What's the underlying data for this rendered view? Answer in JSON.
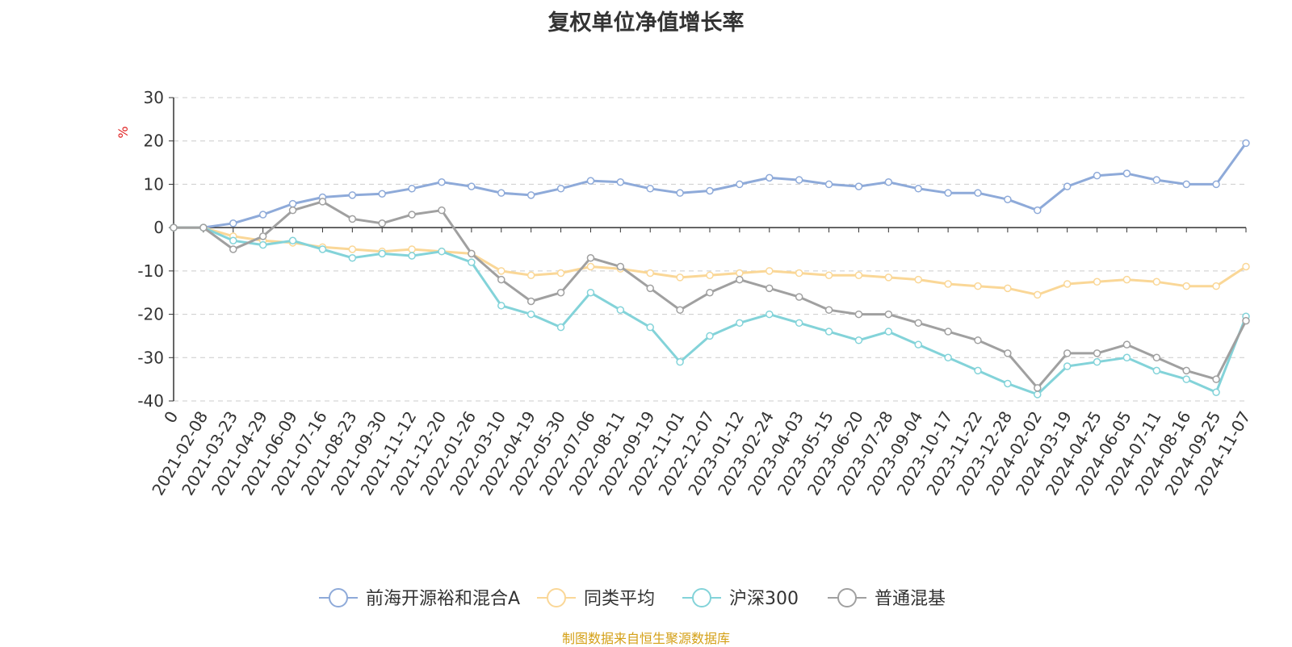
{
  "chart_data": {
    "type": "line",
    "title": "复权单位净值增长率",
    "ylabel": "%",
    "ylim": [
      -40,
      30
    ],
    "yticks": [
      30,
      20,
      10,
      0,
      -10,
      -20,
      -30,
      -40
    ],
    "grid": true,
    "legend_position": "bottom",
    "x_start_label": "0",
    "x": [
      "2021-02-08",
      "2021-03-23",
      "2021-04-29",
      "2021-06-09",
      "2021-07-16",
      "2021-08-23",
      "2021-09-30",
      "2021-11-12",
      "2021-12-20",
      "2022-01-26",
      "2022-03-10",
      "2022-04-19",
      "2022-05-30",
      "2022-07-06",
      "2022-08-11",
      "2022-09-19",
      "2022-11-01",
      "2022-12-07",
      "2023-01-12",
      "2023-02-24",
      "2023-04-03",
      "2023-05-15",
      "2023-06-20",
      "2023-07-28",
      "2023-09-04",
      "2023-10-17",
      "2023-11-22",
      "2023-12-28",
      "2024-02-02",
      "2024-03-19",
      "2024-04-25",
      "2024-06-05",
      "2024-07-11",
      "2024-08-16",
      "2024-09-25",
      "2024-11-07"
    ],
    "series": [
      {
        "name": "前海开源裕和混合A",
        "color": "#8eaad9",
        "values": [
          0,
          1,
          3,
          5.5,
          7,
          7.5,
          7.8,
          9,
          10.5,
          9.5,
          8,
          7.5,
          9,
          10.8,
          10.5,
          9,
          8,
          8.5,
          10,
          11.5,
          11,
          10,
          9.5,
          10.5,
          9,
          8,
          8,
          6.5,
          4,
          9.5,
          12,
          12.5,
          11,
          10,
          10,
          19.5
        ]
      },
      {
        "name": "同类平均",
        "color": "#fad797",
        "values": [
          0,
          -2,
          -3,
          -3.5,
          -4.5,
          -5,
          -5.5,
          -5,
          -5.5,
          -6,
          -10,
          -11,
          -10.5,
          -9,
          -9.5,
          -10.5,
          -11.5,
          -11,
          -10.5,
          -10,
          -10.5,
          -11,
          -11,
          -11.5,
          -12,
          -13,
          -13.5,
          -14,
          -15.5,
          -13,
          -12.5,
          -12,
          -12.5,
          -13.5,
          -13.5,
          -9
        ]
      },
      {
        "name": "沪深300",
        "color": "#83d3d9",
        "values": [
          0,
          -3,
          -4,
          -3,
          -5,
          -7,
          -6,
          -6.5,
          -5.5,
          -8,
          -18,
          -20,
          -23,
          -15,
          -19,
          -23,
          -31,
          -25,
          -22,
          -20,
          -22,
          -24,
          -26,
          -24,
          -27,
          -30,
          -33,
          -36,
          -38.5,
          -32,
          -31,
          -30,
          -33,
          -35,
          -38,
          -20.5
        ]
      },
      {
        "name": "普通混基",
        "color": "#a0a0a0",
        "values": [
          0,
          -5,
          -2,
          4,
          6,
          2,
          1,
          3,
          4,
          -6,
          -12,
          -17,
          -15,
          -7,
          -9,
          -14,
          -19,
          -15,
          -12,
          -14,
          -16,
          -19,
          -20,
          -20,
          -22,
          -24,
          -26,
          -29,
          -37,
          -29,
          -29,
          -27,
          -30,
          -33,
          -35,
          -21.5
        ]
      }
    ]
  },
  "source": "制图数据来自恒生聚源数据库"
}
